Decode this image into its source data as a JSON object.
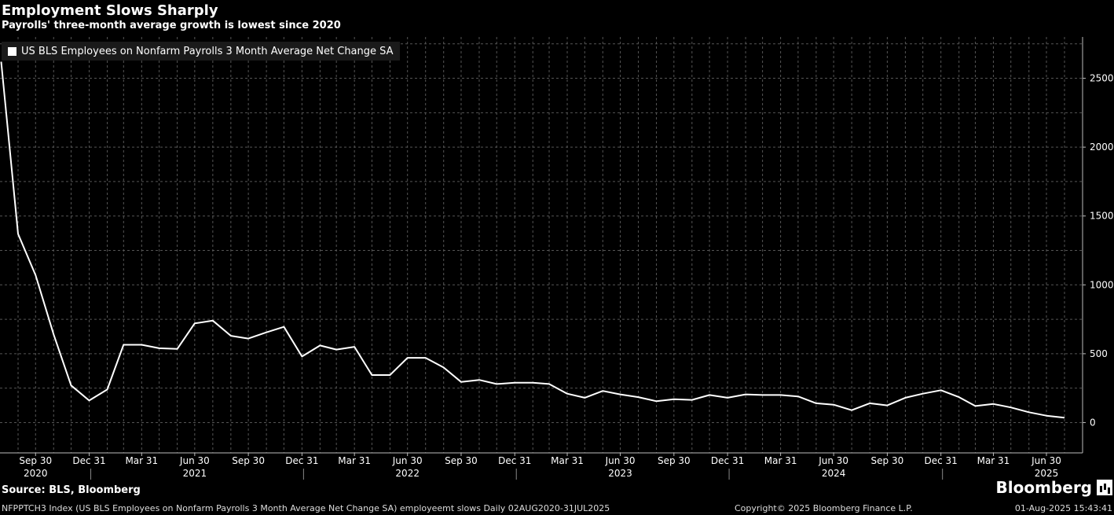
{
  "title": "Employment Slows Sharply",
  "subtitle": "Payrolls' three-month average growth is lowest since 2020",
  "source": "Source: BLS, Bloomberg",
  "logo": "Bloomberg",
  "footer": {
    "left": "NFPPTCH3 Index (US BLS Employees on Nonfarm Payrolls 3 Month Average Net Change SA) employeemt slows  Daily 02AUG2020-31JUL2025",
    "copyright": "Copyright© 2025 Bloomberg Finance L.P.",
    "timestamp": "01-Aug-2025 15:43:41"
  },
  "colors": {
    "background": "#000000",
    "line": "#ffffff",
    "grid": "#555555"
  },
  "chart_data": {
    "type": "line",
    "title": "Employment Slows Sharply",
    "subtitle": "Payrolls' three-month average growth is lowest since 2020",
    "legend": {
      "placement": "top-left",
      "entries": [
        "US BLS Employees on Nonfarm Payrolls 3 Month Average Net Change SA"
      ]
    },
    "xlim": [
      "2020-07-31",
      "2025-08-31"
    ],
    "ylim": [
      -220,
      2800
    ],
    "y_axis_side": "right",
    "y_ticks": [
      0,
      500,
      1000,
      1500,
      2000,
      2500
    ],
    "grid": true,
    "x_ticks": [
      {
        "date": "2020-09-30",
        "label": "Sep 30",
        "year": "2020"
      },
      {
        "date": "2020-12-31",
        "label": "Dec 31",
        "year": ""
      },
      {
        "date": "2021-03-31",
        "label": "Mar 31",
        "year": ""
      },
      {
        "date": "2021-06-30",
        "label": "Jun 30",
        "year": "2021"
      },
      {
        "date": "2021-09-30",
        "label": "Sep 30",
        "year": ""
      },
      {
        "date": "2021-12-31",
        "label": "Dec 31",
        "year": ""
      },
      {
        "date": "2022-03-31",
        "label": "Mar 31",
        "year": ""
      },
      {
        "date": "2022-06-30",
        "label": "Jun 30",
        "year": "2022"
      },
      {
        "date": "2022-09-30",
        "label": "Sep 30",
        "year": ""
      },
      {
        "date": "2022-12-31",
        "label": "Dec 31",
        "year": ""
      },
      {
        "date": "2023-03-31",
        "label": "Mar 31",
        "year": ""
      },
      {
        "date": "2023-06-30",
        "label": "Jun 30",
        "year": "2023"
      },
      {
        "date": "2023-09-30",
        "label": "Sep 30",
        "year": ""
      },
      {
        "date": "2023-12-31",
        "label": "Dec 31",
        "year": ""
      },
      {
        "date": "2024-03-31",
        "label": "Mar 31",
        "year": ""
      },
      {
        "date": "2024-06-30",
        "label": "Jun 30",
        "year": "2024"
      },
      {
        "date": "2024-09-30",
        "label": "Sep 30",
        "year": ""
      },
      {
        "date": "2024-12-31",
        "label": "Dec 31",
        "year": ""
      },
      {
        "date": "2025-03-31",
        "label": "Mar 31",
        "year": ""
      },
      {
        "date": "2025-06-30",
        "label": "Jun 30",
        "year": "2025"
      }
    ],
    "year_separators": [
      "2020-12-31",
      "2021-12-31",
      "2022-12-31",
      "2023-12-31",
      "2024-12-31"
    ],
    "series": [
      {
        "name": "US BLS Employees on Nonfarm Payrolls 3 Month Average Net Change SA",
        "x": [
          "2020-08-02",
          "2020-08-31",
          "2020-09-30",
          "2020-10-31",
          "2020-11-30",
          "2020-12-31",
          "2021-01-31",
          "2021-02-28",
          "2021-03-31",
          "2021-04-30",
          "2021-05-31",
          "2021-06-30",
          "2021-07-31",
          "2021-08-31",
          "2021-09-30",
          "2021-10-31",
          "2021-11-30",
          "2021-12-31",
          "2022-01-31",
          "2022-02-28",
          "2022-03-31",
          "2022-04-30",
          "2022-05-31",
          "2022-06-30",
          "2022-07-31",
          "2022-08-31",
          "2022-09-30",
          "2022-10-31",
          "2022-11-30",
          "2022-12-31",
          "2023-01-31",
          "2023-02-28",
          "2023-03-31",
          "2023-04-30",
          "2023-05-31",
          "2023-06-30",
          "2023-07-31",
          "2023-08-31",
          "2023-09-30",
          "2023-10-31",
          "2023-11-30",
          "2023-12-31",
          "2024-01-31",
          "2024-02-29",
          "2024-03-31",
          "2024-04-30",
          "2024-05-31",
          "2024-06-30",
          "2024-07-31",
          "2024-08-31",
          "2024-09-30",
          "2024-10-31",
          "2024-11-30",
          "2024-12-31",
          "2025-01-31",
          "2025-02-28",
          "2025-03-31",
          "2025-04-30",
          "2025-05-31",
          "2025-06-30",
          "2025-07-31"
        ],
        "values": [
          2620,
          1370,
          1070,
          640,
          270,
          160,
          240,
          565,
          565,
          540,
          535,
          720,
          740,
          630,
          610,
          655,
          695,
          480,
          560,
          530,
          550,
          345,
          345,
          470,
          470,
          400,
          295,
          310,
          280,
          290,
          290,
          280,
          210,
          180,
          230,
          205,
          185,
          155,
          170,
          165,
          200,
          180,
          205,
          200,
          200,
          190,
          140,
          130,
          90,
          140,
          125,
          180,
          210,
          235,
          185,
          120,
          135,
          110,
          75,
          50,
          35
        ]
      }
    ]
  }
}
